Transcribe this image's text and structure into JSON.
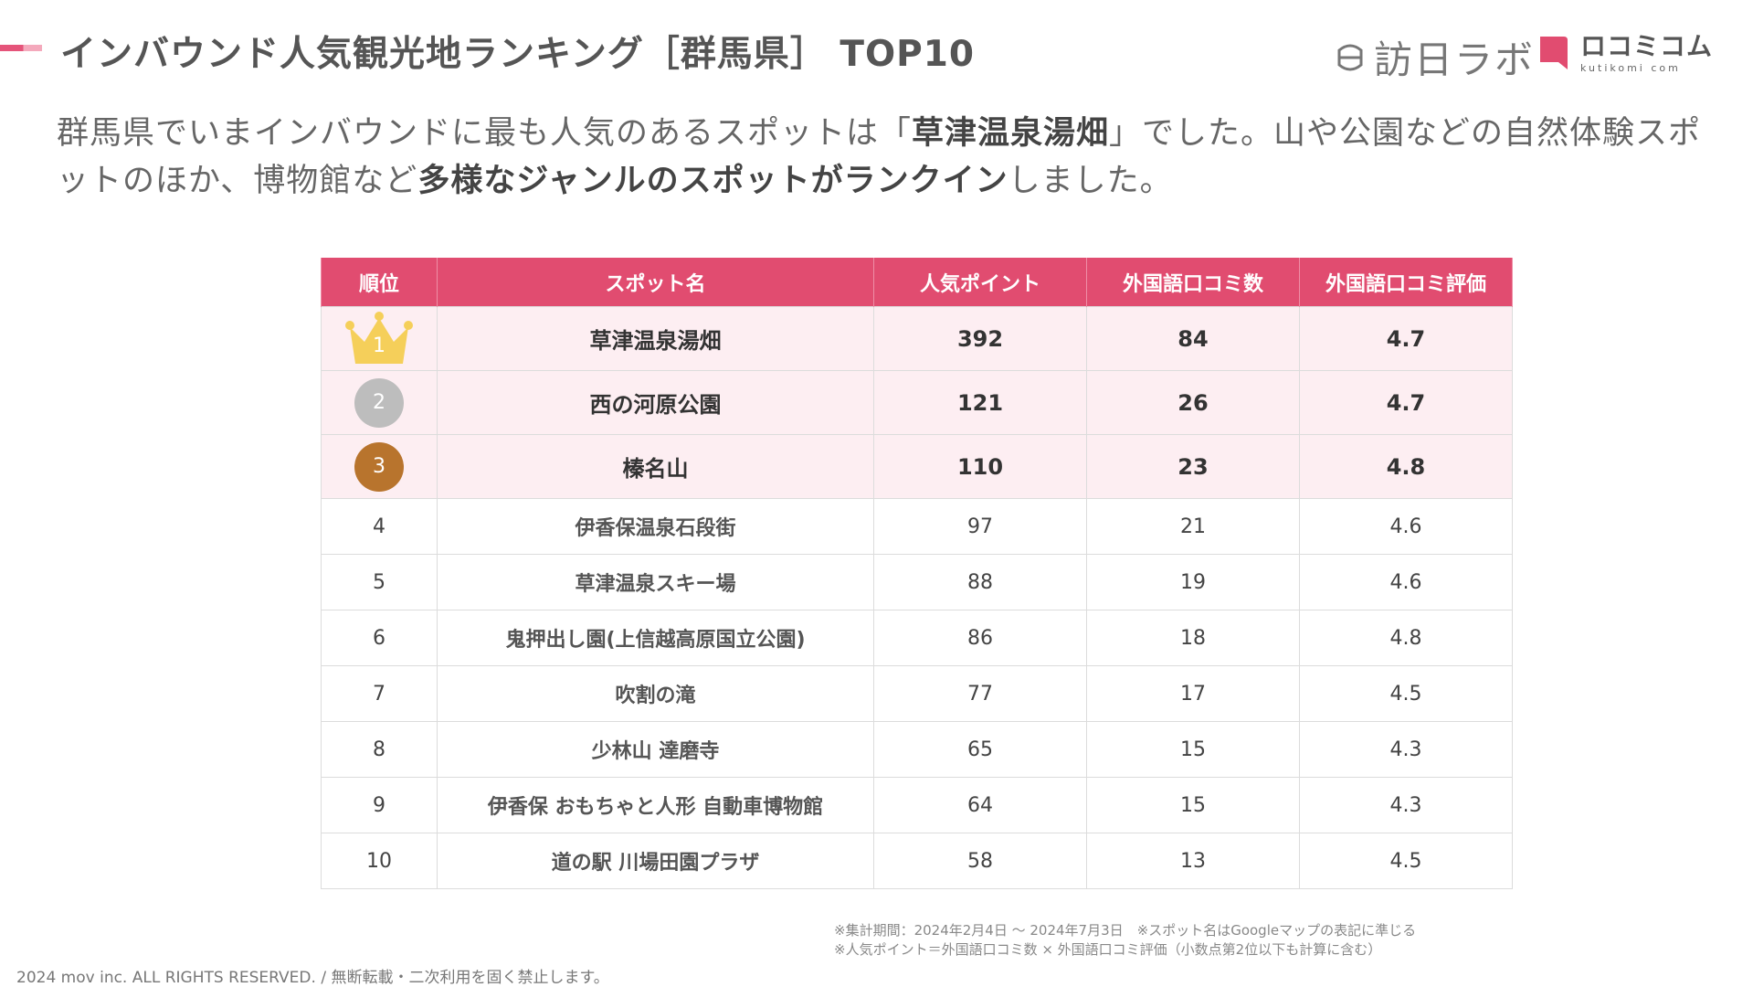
{
  "header": {
    "title": "インバウンド人気観光地ランキング［群馬県］ TOP10",
    "logo_hokko": "訪日ラボ",
    "logo_kuchikomi": "ロコミコム",
    "logo_kuchikomi_sub": "kutikomi com"
  },
  "lead": {
    "part1": "群馬県でいまインバウンドに最も人気のあるスポットは「",
    "highlight1": "草津温泉湯畑",
    "part2": "」でした。山や公園などの自然体験スポットのほか、博物館など",
    "highlight2": "多様なジャンルのスポットがランクイン",
    "part3": "しました。"
  },
  "table": {
    "headers": [
      "順位",
      "スポット名",
      "人気ポイント",
      "外国語口コミ数",
      "外国語口コミ評価"
    ],
    "rows": [
      {
        "rank": "1",
        "name": "草津温泉湯畑",
        "points": "392",
        "reviews": "84",
        "rating": "4.7"
      },
      {
        "rank": "2",
        "name": "西の河原公園",
        "points": "121",
        "reviews": "26",
        "rating": "4.7"
      },
      {
        "rank": "3",
        "name": "榛名山",
        "points": "110",
        "reviews": "23",
        "rating": "4.8"
      },
      {
        "rank": "4",
        "name": "伊香保温泉石段街",
        "points": "97",
        "reviews": "21",
        "rating": "4.6"
      },
      {
        "rank": "5",
        "name": "草津温泉スキー場",
        "points": "88",
        "reviews": "19",
        "rating": "4.6"
      },
      {
        "rank": "6",
        "name": "鬼押出し園(上信越高原国立公園)",
        "points": "86",
        "reviews": "18",
        "rating": "4.8"
      },
      {
        "rank": "7",
        "name": "吹割の滝",
        "points": "77",
        "reviews": "17",
        "rating": "4.5"
      },
      {
        "rank": "8",
        "name": "少林山 達磨寺",
        "points": "65",
        "reviews": "15",
        "rating": "4.3"
      },
      {
        "rank": "9",
        "name": "伊香保 おもちゃと人形 自動車博物館",
        "points": "64",
        "reviews": "15",
        "rating": "4.3"
      },
      {
        "rank": "10",
        "name": "道の駅 川場田園プラザ",
        "points": "58",
        "reviews": "13",
        "rating": "4.5"
      }
    ]
  },
  "notes": {
    "line1": "※集計期間：2024年2月4日 ～ 2024年7月3日　※スポット名はGoogleマップの表記に準じる",
    "line2": "※人気ポイント＝外国語口コミ数 × 外国語口コミ評価（小数点第2位以下も計算に含む）"
  },
  "footer": {
    "copyright": "2024 mov inc. ALL RIGHTS RESERVED. / 無断転載・二次利用を固く禁止します。"
  },
  "colors": {
    "accent": "#e14c70",
    "top3_row_bg": "#fdeef2",
    "gold": "#f5cf5a",
    "silver": "#bdbdbd",
    "bronze": "#b8742d"
  }
}
